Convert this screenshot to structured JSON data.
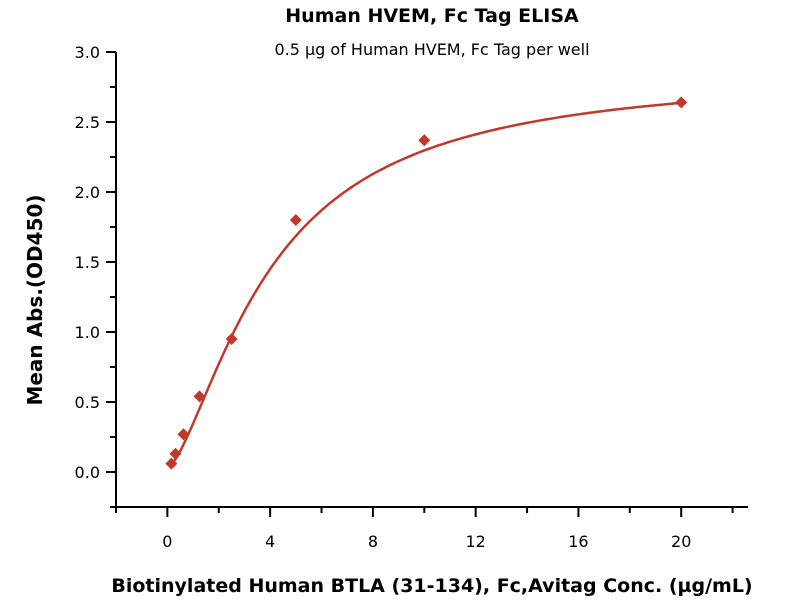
{
  "chart_data": {
    "type": "scatter",
    "title": "Human HVEM, Fc Tag ELISA",
    "subtitle": "0.5 µg of Human HVEM, Fc Tag per well",
    "xlabel": "Biotinylated Human BTLA (31-134), Fc,Avitag Conc. (µg/mL)",
    "ylabel": "Mean Abs.(OD450)",
    "xlim": [
      -2,
      22.6
    ],
    "ylim": [
      -0.25,
      3.0
    ],
    "xticks": [
      0,
      4,
      8,
      12,
      16,
      20
    ],
    "xtick_labels": [
      "0",
      "4",
      "8",
      "12",
      "16",
      "20"
    ],
    "yticks": [
      0.0,
      0.5,
      1.0,
      1.5,
      2.0,
      2.5,
      3.0
    ],
    "ytick_labels": [
      "0.0",
      "0.5",
      "1.0",
      "1.5",
      "2.0",
      "2.5",
      "3.0"
    ],
    "grid": false,
    "series": [
      {
        "name": "Human HVEM, Fc Tag",
        "color": "#c0392b",
        "x": [
          0.156,
          0.3125,
          0.625,
          1.25,
          2.5,
          5,
          10,
          20
        ],
        "y": [
          0.06,
          0.13,
          0.27,
          0.54,
          0.95,
          1.8,
          2.37,
          2.64
        ],
        "fit": {
          "model": "4PL",
          "bottom": 0.03,
          "top": 2.87,
          "ec50": 4.0,
          "hill": 1.5
        }
      }
    ]
  }
}
